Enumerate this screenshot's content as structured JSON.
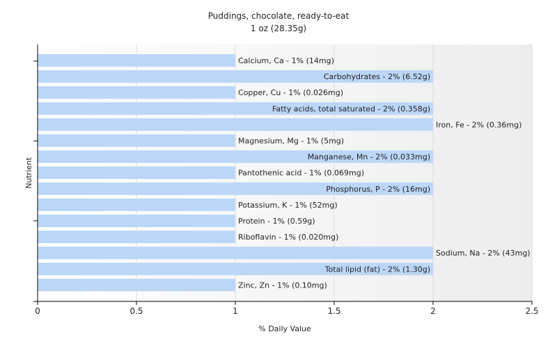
{
  "chart_data": {
    "type": "bar",
    "orientation": "horizontal",
    "title": "Puddings, chocolate, ready-to-eat",
    "subtitle": "1 oz (28.35g)",
    "xlabel": "% Daily Value",
    "ylabel": "Nutrient",
    "xlim": [
      0,
      2.5
    ],
    "xticks": [
      0,
      0.5,
      1,
      1.5,
      2,
      2.5
    ],
    "xtick_labels": [
      "0",
      "0.5",
      "1",
      "1.5",
      "2",
      "2.5"
    ],
    "grid": true,
    "bar_color": "#bcd6f7",
    "categories": [
      "Calcium, Ca",
      "Carbohydrates",
      "Copper, Cu",
      "Fatty acids, total saturated",
      "Iron, Fe",
      "Magnesium, Mg",
      "Manganese, Mn",
      "Pantothenic acid",
      "Phosphorus, P",
      "Potassium, K",
      "Protein",
      "Riboflavin",
      "Sodium, Na",
      "Total lipid (fat)",
      "Zinc, Zn"
    ],
    "values": [
      1,
      2,
      1,
      2,
      2,
      1,
      2,
      1,
      2,
      1,
      1,
      1,
      2,
      2,
      1
    ],
    "data_labels": [
      "Calcium, Ca - 1% (14mg)",
      "Carbohydrates - 2% (6.52g)",
      "Copper, Cu - 1% (0.026mg)",
      "Fatty acids, total saturated - 2% (0.358g)",
      "Iron, Fe - 2% (0.36mg)",
      "Magnesium, Mg - 1% (5mg)",
      "Manganese, Mn - 2% (0.033mg)",
      "Pantothenic acid - 1% (0.069mg)",
      "Phosphorus, P - 2% (16mg)",
      "Potassium, K - 1% (52mg)",
      "Protein - 1% (0.59g)",
      "Riboflavin - 1% (0.020mg)",
      "Sodium, Na - 2% (43mg)",
      "Total lipid (fat) - 2% (1.30g)",
      "Zinc, Zn - 1% (0.10mg)"
    ],
    "label_positions": [
      "outside",
      "inside",
      "outside",
      "inside",
      "outside",
      "outside",
      "inside",
      "outside",
      "inside",
      "outside",
      "outside",
      "outside",
      "outside",
      "inside",
      "outside"
    ]
  }
}
